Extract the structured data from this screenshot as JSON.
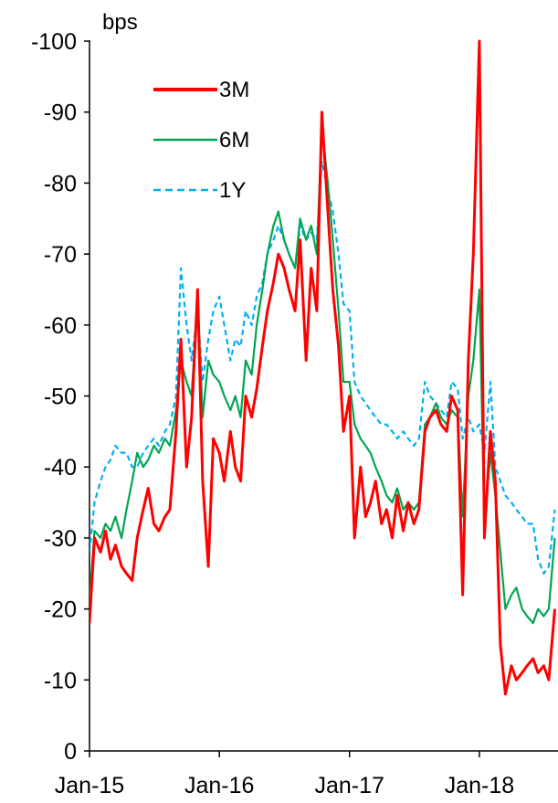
{
  "chart_data": {
    "type": "line",
    "ylabel": "bps",
    "ylim": [
      0,
      -100
    ],
    "y_inverted": true,
    "yticks": [
      0,
      -10,
      -20,
      -30,
      -40,
      -50,
      -60,
      -70,
      -80,
      -90,
      -100
    ],
    "ytick_labels": [
      "0",
      "-10",
      "-20",
      "-30",
      "-40",
      "-50",
      "-60",
      "-70",
      "-80",
      "-90",
      "-100"
    ],
    "xticks": [
      "2015-01",
      "2016-01",
      "2017-01",
      "2018-01"
    ],
    "xtick_labels": [
      "Jan-15",
      "Jan-16",
      "Jan-17",
      "Jan-18"
    ],
    "xlim": [
      "2015-01-01",
      "2018-08-10"
    ],
    "grid": false,
    "legend_position": "top-left",
    "x": [
      "2015-01-01",
      "2015-01-15",
      "2015-02-01",
      "2015-02-15",
      "2015-03-01",
      "2015-03-15",
      "2015-04-01",
      "2015-04-15",
      "2015-05-01",
      "2015-05-15",
      "2015-06-01",
      "2015-06-15",
      "2015-07-01",
      "2015-07-15",
      "2015-08-01",
      "2015-08-15",
      "2015-09-01",
      "2015-09-15",
      "2015-10-01",
      "2015-10-15",
      "2015-11-01",
      "2015-11-15",
      "2015-12-01",
      "2015-12-15",
      "2016-01-01",
      "2016-01-15",
      "2016-02-01",
      "2016-02-15",
      "2016-03-01",
      "2016-03-15",
      "2016-04-01",
      "2016-04-15",
      "2016-05-01",
      "2016-05-15",
      "2016-06-01",
      "2016-06-15",
      "2016-07-01",
      "2016-07-15",
      "2016-08-01",
      "2016-08-15",
      "2016-09-01",
      "2016-09-15",
      "2016-10-01",
      "2016-10-15",
      "2016-11-01",
      "2016-11-15",
      "2016-12-01",
      "2016-12-15",
      "2017-01-01",
      "2017-01-15",
      "2017-02-01",
      "2017-02-15",
      "2017-03-01",
      "2017-03-15",
      "2017-04-01",
      "2017-04-15",
      "2017-05-01",
      "2017-05-15",
      "2017-06-01",
      "2017-06-15",
      "2017-07-01",
      "2017-07-15",
      "2017-08-01",
      "2017-08-15",
      "2017-09-01",
      "2017-09-15",
      "2017-10-01",
      "2017-10-15",
      "2017-11-01",
      "2017-11-15",
      "2017-12-01",
      "2017-12-15",
      "2018-01-01",
      "2018-01-15",
      "2018-02-01",
      "2018-02-15",
      "2018-03-01",
      "2018-03-15",
      "2018-04-01",
      "2018-04-15",
      "2018-05-01",
      "2018-05-15",
      "2018-06-01",
      "2018-06-15",
      "2018-07-01",
      "2018-07-15",
      "2018-08-01"
    ],
    "series": [
      {
        "name": "3M",
        "color": "#ff0000",
        "dash": "solid",
        "values": [
          -18,
          -30,
          -28,
          -31,
          -27,
          -29,
          -26,
          -25,
          -24,
          -30,
          -34,
          -37,
          -32,
          -31,
          -33,
          -34,
          -45,
          -58,
          -40,
          -47,
          -65,
          -38,
          -26,
          -44,
          -42,
          -38,
          -45,
          -40,
          -38,
          -50,
          -47,
          -51,
          -57,
          -62,
          -66,
          -70,
          -68,
          -65,
          -62,
          -72,
          -55,
          -68,
          -62,
          -90,
          -76,
          -65,
          -57,
          -45,
          -50,
          -30,
          -40,
          -33,
          -35,
          -38,
          -32,
          -34,
          -30,
          -36,
          -31,
          -35,
          -32,
          -34,
          -45,
          -47,
          -48,
          -46,
          -45,
          -50,
          -48,
          -22,
          -55,
          -70,
          -100,
          -30,
          -45,
          -38,
          -15,
          -8,
          -12,
          -10,
          -11,
          -12,
          -13,
          -11,
          -12,
          -10,
          -20
        ]
      },
      {
        "name": "6M",
        "color": "#00a651",
        "dash": "solid",
        "values": [
          -21,
          -31,
          -30,
          -32,
          -31,
          -33,
          -30,
          -34,
          -38,
          -42,
          -40,
          -41,
          -43,
          -42,
          -44,
          -43,
          -48,
          -55,
          -52,
          -50,
          -64,
          -47,
          -55,
          -53,
          -52,
          -50,
          -48,
          -50,
          -47,
          -55,
          -53,
          -60,
          -65,
          -70,
          -74,
          -76,
          -72,
          -70,
          -68,
          -75,
          -72,
          -74,
          -70,
          -88,
          -80,
          -72,
          -62,
          -52,
          -52,
          -46,
          -44,
          -43,
          -42,
          -40,
          -38,
          -36,
          -35,
          -37,
          -34,
          -35,
          -34,
          -35,
          -46,
          -47,
          -49,
          -47,
          -46,
          -48,
          -47,
          -33,
          -50,
          -55,
          -65,
          -32,
          -42,
          -36,
          -28,
          -20,
          -22,
          -23,
          -20,
          -19,
          -18,
          -20,
          -19,
          -20,
          -30
        ]
      },
      {
        "name": "1Y",
        "color": "#00b0f0",
        "dash": "dashed",
        "values": [
          -28,
          -35,
          -38,
          -40,
          -41,
          -43,
          -42,
          -42,
          -40,
          -40,
          -42,
          -43,
          -44,
          -43,
          -45,
          -46,
          -50,
          -68,
          -60,
          -55,
          -62,
          -52,
          -58,
          -62,
          -64,
          -60,
          -55,
          -58,
          -57,
          -62,
          -60,
          -64,
          -66,
          -70,
          -72,
          -74,
          -72,
          -70,
          -68,
          -74,
          -72,
          -73,
          -72,
          -83,
          -79,
          -76,
          -70,
          -63,
          -62,
          -52,
          -50,
          -49,
          -48,
          -47,
          -46,
          -46,
          -45,
          -44,
          -45,
          -44,
          -43,
          -44,
          -52,
          -50,
          -49,
          -48,
          -47,
          -52,
          -51,
          -44,
          -47,
          -45,
          -46,
          -42,
          -52,
          -40,
          -38,
          -36,
          -35,
          -34,
          -33,
          -32,
          -32,
          -27,
          -25,
          -26,
          -34
        ]
      }
    ]
  }
}
